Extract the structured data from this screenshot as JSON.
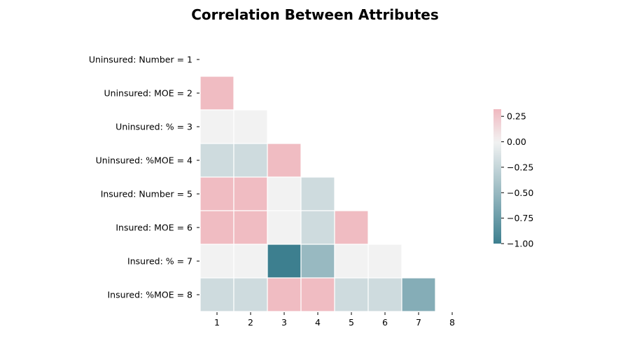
{
  "chart_data": {
    "type": "heatmap",
    "title": "Correlation Between Attributes",
    "xlabel": "",
    "ylabel": "",
    "row_labels": [
      "Uninsured: Number = 1",
      "Uninsured: MOE = 2",
      "Uninsured: % = 3",
      "Uninsured: %MOE = 4",
      "Insured: Number = 5",
      "Insured: MOE = 6",
      "Insured: % = 7",
      "Insured: %MOE = 8"
    ],
    "col_labels": [
      "1",
      "2",
      "3",
      "4",
      "5",
      "6",
      "7",
      "8"
    ],
    "mask": "upper-triangle-including-diagonal",
    "values": [
      [
        null,
        null,
        null,
        null,
        null,
        null,
        null,
        null
      ],
      [
        0.3,
        null,
        null,
        null,
        null,
        null,
        null,
        null
      ],
      [
        0.0,
        0.0,
        null,
        null,
        null,
        null,
        null,
        null
      ],
      [
        -0.2,
        -0.2,
        0.3,
        null,
        null,
        null,
        null,
        null
      ],
      [
        0.3,
        0.3,
        0.0,
        -0.2,
        null,
        null,
        null,
        null
      ],
      [
        0.3,
        0.3,
        0.0,
        -0.2,
        0.3,
        null,
        null,
        null
      ],
      [
        0.0,
        0.0,
        -1.0,
        -0.5,
        0.0,
        0.0,
        null,
        null
      ],
      [
        -0.2,
        -0.2,
        0.3,
        0.3,
        -0.2,
        -0.2,
        -0.6,
        null
      ]
    ],
    "colorbar": {
      "vmin": -1.0,
      "vmax": 0.32,
      "ticks": [
        0.25,
        0.0,
        -0.25,
        -0.5,
        -0.75,
        -1.0
      ],
      "tick_labels": [
        "0.25",
        "0.00",
        "−0.25",
        "−0.50",
        "−0.75",
        "−1.00"
      ],
      "colormap": {
        "low": "#3d7f8f",
        "mid": "#f2f2f2",
        "high": "#f0b8bf"
      }
    },
    "grid": false,
    "legend": "colorbar-right"
  }
}
